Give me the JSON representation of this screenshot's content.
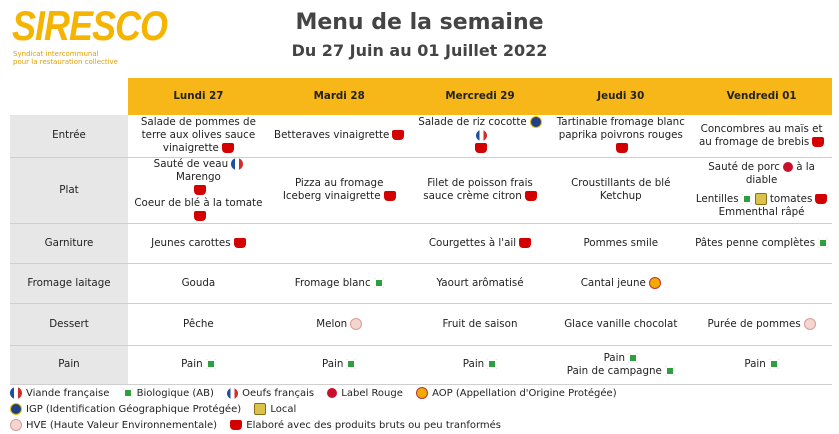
{
  "header": {
    "logo": "SIRESCO",
    "tagline": [
      "Syndicat intercommunal",
      "pour la restauration collective"
    ],
    "title": "Menu de la semaine",
    "subtitle": "Du 27 Juin au 01 Juillet 2022"
  },
  "table": {
    "columns": [
      "Lundi 27",
      "Mardi 28",
      "Mercredi 29",
      "Jeudi 30",
      "Vendredi 01"
    ],
    "rows": [
      {
        "label": "Entrée",
        "cells": [
          [
            "Salade de pommes de terre aux olives sauce vinaigrette"
          ],
          [
            "Betteraves vinaigrette"
          ],
          [
            "Salade de riz cocotte"
          ],
          [
            "Tartinable fromage blanc paprika poivrons rouges"
          ],
          [
            "Concombres au maïs et au fromage de brebis"
          ]
        ]
      },
      {
        "label": "Plat",
        "cells": [
          [
            "Sauté de veau",
            "Marengo",
            "Coeur de blé à la tomate"
          ],
          [
            "Pizza au fromage",
            "Iceberg vinaigrette"
          ],
          [
            "Filet de poisson frais sauce crème citron"
          ],
          [
            "Croustillants de blé",
            "Ketchup"
          ],
          [
            "Sauté de porc",
            "à la diable",
            "Lentilles",
            "tomates",
            "Emmenthal râpé"
          ]
        ]
      },
      {
        "label": "Garniture",
        "cells": [
          [
            "Jeunes carottes"
          ],
          [],
          [
            "Courgettes à l'ail"
          ],
          [
            "Pommes smile"
          ],
          [
            "Pâtes penne complètes"
          ]
        ]
      },
      {
        "label": "Fromage laitage",
        "cells": [
          [
            "Gouda"
          ],
          [
            "Fromage blanc"
          ],
          [
            "Yaourt arômatisé"
          ],
          [
            "Cantal jeune"
          ],
          []
        ]
      },
      {
        "label": "Dessert",
        "cells": [
          [
            "Pêche"
          ],
          [
            "Melon"
          ],
          [
            "Fruit de saison"
          ],
          [
            "Glace vanille chocolat"
          ],
          [
            "Purée de pommes"
          ]
        ]
      },
      {
        "label": "Pain",
        "cells": [
          [
            "Pain"
          ],
          [
            "Pain"
          ],
          [
            "Pain"
          ],
          [
            "Pain",
            "Pain de campagne"
          ],
          [
            "Pain"
          ]
        ]
      }
    ]
  },
  "legend": [
    "Viande française",
    "Biologique (AB)",
    "Oeufs français",
    "Label Rouge",
    "AOP (Appellation d'Origine Protégée)",
    "IGP (Identification Géographique Protégée)",
    "Local",
    "HVE (Haute Valeur Environnementale)",
    "Elaboré avec des produits bruts ou peu tranformés"
  ]
}
